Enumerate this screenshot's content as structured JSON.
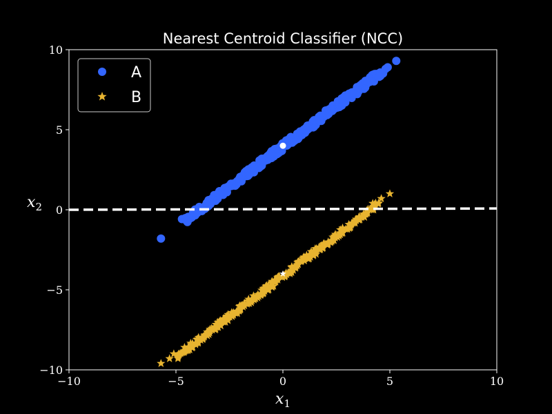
{
  "chart_data": {
    "type": "scatter",
    "title": "Nearest Centroid Classifier (NCC)",
    "xlabel": {
      "base": "x",
      "sub": "1"
    },
    "ylabel": {
      "base": "x",
      "sub": "2"
    },
    "xlim": [
      -10,
      10
    ],
    "ylim": [
      -10,
      10
    ],
    "xticks": [
      -10,
      -5,
      0,
      5,
      10
    ],
    "yticks": [
      -10,
      -5,
      0,
      5,
      10
    ],
    "xtick_labels": [
      "−10",
      "−5",
      "0",
      "5",
      "10"
    ],
    "ytick_labels": [
      "−10",
      "−5",
      "0",
      "5",
      "10"
    ],
    "grid": false,
    "legend_position": "top-left",
    "background_color": "#000000",
    "series": [
      {
        "name": "A",
        "marker": "circle",
        "color": "#3366ff",
        "line_from": [
          -4.6,
          -0.7
        ],
        "line_to": [
          4.6,
          8.6
        ],
        "n_points": 260,
        "spread": 0.12,
        "outliers": [
          [
            -5.7,
            -1.8
          ],
          [
            -4.5,
            -0.7
          ],
          [
            4.5,
            8.3
          ],
          [
            4.8,
            8.8
          ],
          [
            4.9,
            8.9
          ],
          [
            5.3,
            9.3
          ]
        ]
      },
      {
        "name": "B",
        "marker": "star",
        "color": "#e8b430",
        "line_from": [
          -5.0,
          -9.2
        ],
        "line_to": [
          4.5,
          0.4
        ],
        "n_points": 260,
        "spread": 0.1,
        "outliers": [
          [
            -5.7,
            -9.6
          ],
          [
            -5.3,
            -9.3
          ],
          [
            -5.1,
            -9.0
          ],
          [
            -4.6,
            -8.6
          ],
          [
            4.2,
            0.4
          ],
          [
            4.6,
            0.7
          ],
          [
            5.0,
            1.0
          ]
        ]
      }
    ],
    "centroids": [
      {
        "series": "A",
        "x": 0.0,
        "y": 4.0,
        "marker": "circle",
        "color": "#ffffff"
      },
      {
        "series": "B",
        "x": 0.0,
        "y": -4.0,
        "marker": "star",
        "color": "#ffffff"
      }
    ],
    "decision_boundary": {
      "style": "dashed",
      "color": "#ffffff",
      "points": [
        [
          -10,
          0.0
        ],
        [
          10,
          0.08
        ]
      ]
    }
  }
}
